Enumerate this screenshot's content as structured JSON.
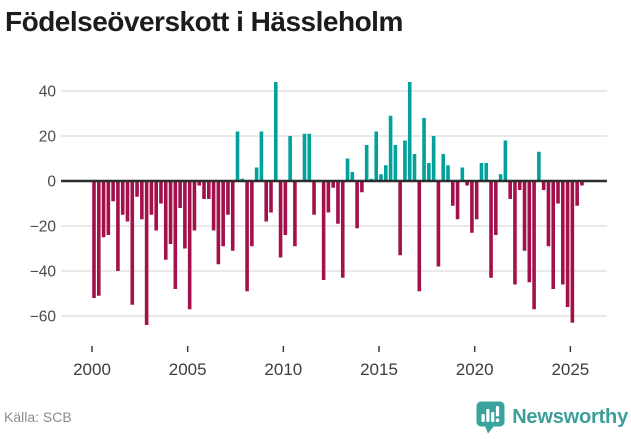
{
  "title": "Födelseöverskott i Hässleholm",
  "footer": {
    "source": "Källa: SCB",
    "brand": "Newsworthy"
  },
  "colors": {
    "positive_bar": "#00a29b",
    "negative_bar": "#a3104b",
    "zero_line": "#2d2d2d",
    "gridline": "#e9e9e9",
    "y_tick_text": "#4a4a4a",
    "x_tick_text": "#3d3d3d",
    "brand_teal": "#3aa39d",
    "title_text": "#1c1c1c",
    "source_text": "#8c8c8c"
  },
  "chart_data": {
    "type": "bar",
    "title": "Födelseöverskott i Hässleholm",
    "source": "SCB",
    "frequency": "quarterly",
    "start": "2000-Q1",
    "end": "2025-Q3",
    "ylim": [
      -70,
      48
    ],
    "yticks": [
      40,
      20,
      0,
      -20,
      -40,
      -60
    ],
    "xticks": [
      2000,
      2005,
      2010,
      2015,
      2020,
      2025
    ],
    "grid": true,
    "legend": false,
    "values": [
      -52,
      -51,
      -25,
      -24,
      -9,
      -40,
      -15,
      -18,
      -55,
      -7,
      -17,
      -64,
      -15,
      -22,
      -10,
      -35,
      -28,
      -48,
      -12,
      -30,
      -57,
      -22,
      -2,
      -8,
      -8,
      -22,
      -37,
      -29,
      -15,
      -31,
      22,
      1,
      -49,
      -29,
      6,
      22,
      -18,
      -14,
      44,
      -34,
      -24,
      20,
      -29,
      0,
      21,
      21,
      -15,
      0,
      -44,
      -14,
      -3,
      -19,
      -43,
      10,
      4,
      -21,
      -5,
      16,
      1,
      22,
      3,
      7,
      29,
      16,
      -33,
      18,
      44,
      12,
      -49,
      28,
      8,
      20,
      -38,
      12,
      7,
      -11,
      -17,
      6,
      -2,
      -23,
      -17,
      8,
      8,
      -43,
      -24,
      3,
      18,
      -8,
      -46,
      -4,
      -31,
      -45,
      -57,
      13,
      -4,
      -29,
      -48,
      -10,
      -46,
      -56,
      -63,
      -11,
      -2
    ]
  }
}
